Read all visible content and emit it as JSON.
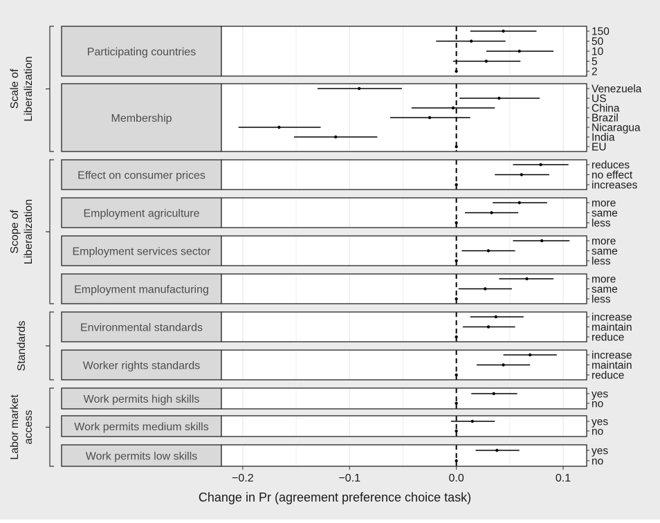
{
  "chart_data": {
    "type": "coefficient-plot",
    "title": "",
    "xlabel": "Change in Pr (agreement preference choice task)",
    "xlim": [
      -0.22,
      0.122
    ],
    "xticks": [
      -0.2,
      -0.1,
      0.0,
      0.1
    ],
    "xtick_labels": [
      "−0.2",
      "−0.1",
      "0.0",
      "0.1"
    ],
    "reference_line": 0,
    "colors": {
      "panel_background": "#ebebeb",
      "plot_background": "#ffffff",
      "grid": "#ebebeb",
      "strip_fill": "#d9d9d9",
      "strip_border": "#333333",
      "point": "#000000"
    },
    "groups": [
      {
        "label": "Scale of\nLiberalization",
        "facets": [
          0,
          1
        ]
      },
      {
        "label": "Scope of\nLiberalization",
        "facets": [
          2,
          3,
          4,
          5
        ]
      },
      {
        "label": "Standards",
        "facets": [
          6,
          7
        ]
      },
      {
        "label": "Labor market\naccess",
        "facets": [
          8,
          9,
          10
        ]
      }
    ],
    "facets": [
      {
        "name": "Participating countries",
        "levels": [
          {
            "label": "150",
            "est": 0.044,
            "lo": 0.013,
            "hi": 0.075
          },
          {
            "label": "50",
            "est": 0.014,
            "lo": -0.019,
            "hi": 0.046
          },
          {
            "label": "10",
            "est": 0.059,
            "lo": 0.028,
            "hi": 0.091
          },
          {
            "label": "5",
            "est": 0.028,
            "lo": -0.003,
            "hi": 0.06
          },
          {
            "label": "2",
            "est": 0.0
          }
        ]
      },
      {
        "name": "Membership",
        "levels": [
          {
            "label": "Venezuela",
            "est": -0.091,
            "lo": -0.13,
            "hi": -0.051
          },
          {
            "label": "US",
            "est": 0.04,
            "lo": 0.003,
            "hi": 0.078
          },
          {
            "label": "China",
            "est": -0.003,
            "lo": -0.042,
            "hi": 0.036
          },
          {
            "label": "Brazil",
            "est": -0.025,
            "lo": -0.062,
            "hi": 0.013
          },
          {
            "label": "Nicaragua",
            "est": -0.166,
            "lo": -0.204,
            "hi": -0.127
          },
          {
            "label": "India",
            "est": -0.113,
            "lo": -0.152,
            "hi": -0.074
          },
          {
            "label": "EU",
            "est": 0.0
          }
        ]
      },
      {
        "name": "Effect on consumer prices",
        "levels": [
          {
            "label": "reduces",
            "est": 0.079,
            "lo": 0.053,
            "hi": 0.105
          },
          {
            "label": "no effect",
            "est": 0.061,
            "lo": 0.036,
            "hi": 0.087
          },
          {
            "label": "increases",
            "est": 0.0
          }
        ]
      },
      {
        "name": "Employment agriculture",
        "levels": [
          {
            "label": "more",
            "est": 0.059,
            "lo": 0.034,
            "hi": 0.085
          },
          {
            "label": "same",
            "est": 0.033,
            "lo": 0.008,
            "hi": 0.058
          },
          {
            "label": "less",
            "est": 0.0
          }
        ]
      },
      {
        "name": "Employment services sector",
        "levels": [
          {
            "label": "more",
            "est": 0.08,
            "lo": 0.053,
            "hi": 0.106
          },
          {
            "label": "same",
            "est": 0.03,
            "lo": 0.005,
            "hi": 0.055
          },
          {
            "label": "less",
            "est": 0.0
          }
        ]
      },
      {
        "name": "Employment manufacturing",
        "levels": [
          {
            "label": "more",
            "est": 0.066,
            "lo": 0.04,
            "hi": 0.091
          },
          {
            "label": "same",
            "est": 0.027,
            "lo": 0.002,
            "hi": 0.052
          },
          {
            "label": "less",
            "est": 0.0
          }
        ]
      },
      {
        "name": "Environmental standards",
        "levels": [
          {
            "label": "increase",
            "est": 0.037,
            "lo": 0.013,
            "hi": 0.063
          },
          {
            "label": "maintain",
            "est": 0.03,
            "lo": 0.006,
            "hi": 0.055
          },
          {
            "label": "reduce",
            "est": 0.0
          }
        ]
      },
      {
        "name": "Worker rights standards",
        "levels": [
          {
            "label": "increase",
            "est": 0.069,
            "lo": 0.044,
            "hi": 0.094
          },
          {
            "label": "maintain",
            "est": 0.044,
            "lo": 0.019,
            "hi": 0.069
          },
          {
            "label": "reduce",
            "est": 0.0
          }
        ]
      },
      {
        "name": "Work permits high skills",
        "levels": [
          {
            "label": "yes",
            "est": 0.035,
            "lo": 0.014,
            "hi": 0.057
          },
          {
            "label": "no",
            "est": 0.0
          }
        ]
      },
      {
        "name": "Work permits medium skills",
        "levels": [
          {
            "label": "yes",
            "est": 0.015,
            "lo": -0.005,
            "hi": 0.036
          },
          {
            "label": "no",
            "est": 0.0
          }
        ]
      },
      {
        "name": "Work permits low skills",
        "levels": [
          {
            "label": "yes",
            "est": 0.038,
            "lo": 0.018,
            "hi": 0.059
          },
          {
            "label": "no",
            "est": 0.0
          }
        ]
      }
    ]
  }
}
